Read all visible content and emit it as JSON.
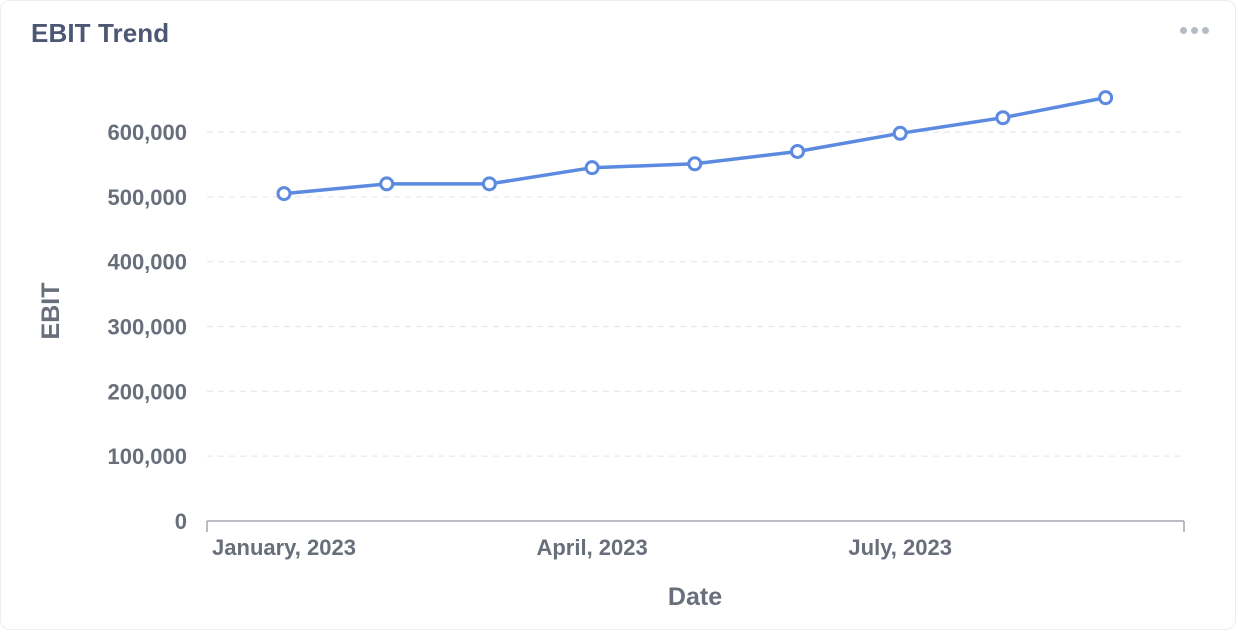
{
  "card": {
    "title": "EBIT Trend",
    "menu_icon": "more-horizontal-icon"
  },
  "chart_data": {
    "type": "line",
    "title": "EBIT Trend",
    "xlabel": "Date",
    "ylabel": "EBIT",
    "x": [
      "2023-01",
      "2023-02",
      "2023-03",
      "2023-04",
      "2023-05",
      "2023-06",
      "2023-07",
      "2023-08",
      "2023-09"
    ],
    "x_tick_labels": [
      "January, 2023",
      "April, 2023",
      "July, 2023"
    ],
    "x_tick_values": [
      "2023-01",
      "2023-04",
      "2023-07"
    ],
    "ylim": [
      0,
      600000
    ],
    "y_ticks": [
      0,
      100000,
      200000,
      300000,
      400000,
      500000,
      600000
    ],
    "y_tick_labels": [
      "0",
      "100,000",
      "200,000",
      "300,000",
      "400,000",
      "500,000",
      "600,000"
    ],
    "series": [
      {
        "values": [
          505000,
          520000,
          520000,
          545000,
          551000,
          570000,
          598000,
          622000,
          653000
        ],
        "color": "#5b8ae0"
      }
    ],
    "grid": true,
    "legend": "none"
  }
}
